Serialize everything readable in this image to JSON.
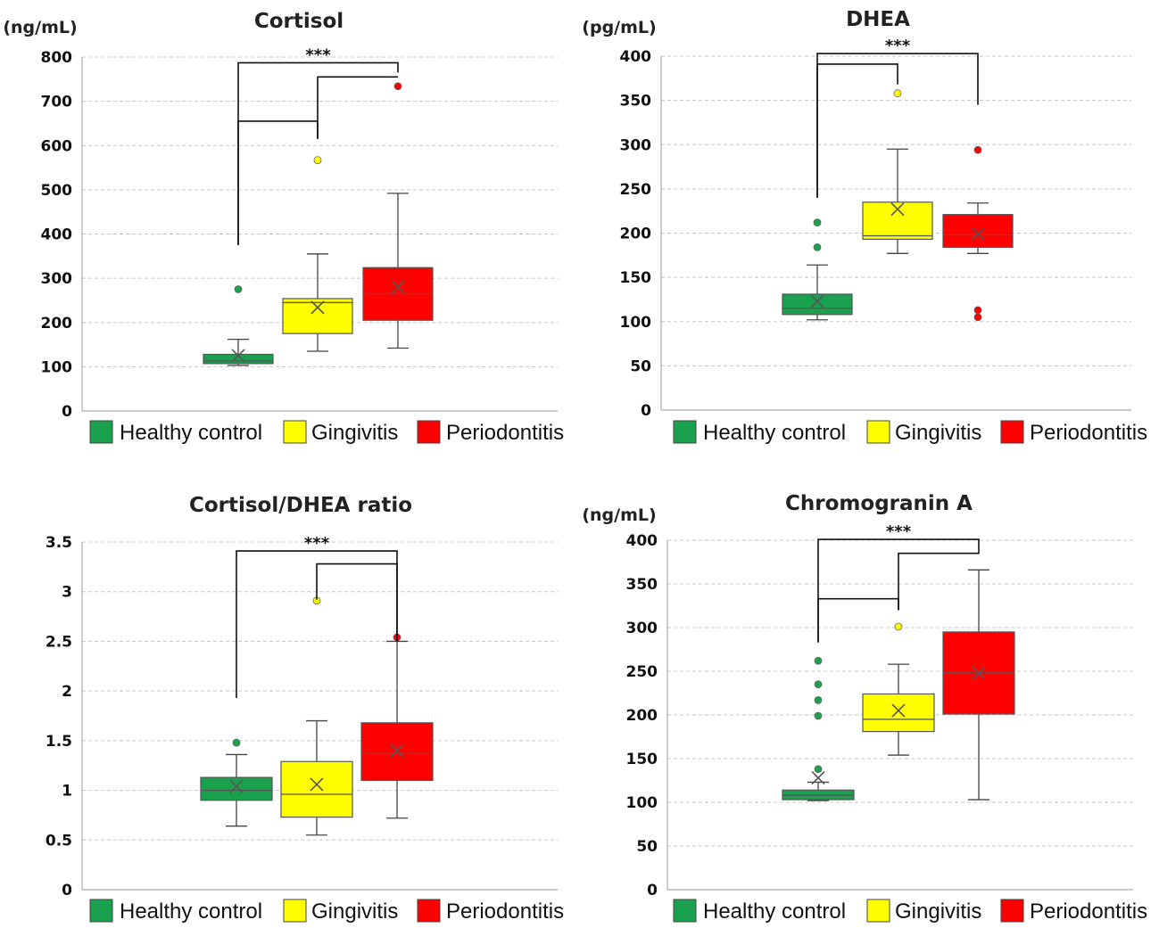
{
  "colors": {
    "healthy": "#1aa14d",
    "gingivitis": "#ffff00",
    "periodontitis": "#ff0000",
    "outline": "#555555"
  },
  "chart_data": [
    {
      "type": "box",
      "title": "Cortisol",
      "ylabel": "(ng/mL)",
      "ylim": [
        0,
        800
      ],
      "yticks": [
        "0",
        "100",
        "200",
        "300",
        "400",
        "500",
        "600",
        "700",
        "800"
      ],
      "yticks_values": [
        0,
        100,
        200,
        300,
        400,
        500,
        600,
        700,
        800
      ],
      "legend": [
        "Healthy control",
        "Gingivitis",
        "Periodontitis"
      ],
      "significance": "***",
      "series": [
        {
          "name": "Healthy control",
          "min": 103,
          "q1": 107,
          "median": 113,
          "q3": 128,
          "max": 162,
          "mean": 125,
          "outliers": [
            275
          ]
        },
        {
          "name": "Gingivitis",
          "min": 135,
          "q1": 175,
          "median": 245,
          "q3": 254,
          "max": 355,
          "mean": 234,
          "outliers": [
            567
          ]
        },
        {
          "name": "Periodontitis",
          "min": 142,
          "q1": 205,
          "median": 265,
          "q3": 324,
          "max": 492,
          "mean": 280,
          "outliers": [
            734
          ]
        }
      ],
      "brackets": [
        {
          "from": 0,
          "to": 2,
          "left_value": 375,
          "right_value": 765,
          "top_value": 787
        },
        {
          "from": 0,
          "to": 1,
          "left_value": 375,
          "right_value": 615,
          "top_value": 655
        },
        {
          "from": 1,
          "to": 2,
          "left_value": 615,
          "right_value": 755,
          "top_value": 755
        }
      ]
    },
    {
      "type": "box",
      "title": "DHEA",
      "ylabel": "(pg/mL)",
      "ylim": [
        0,
        400
      ],
      "yticks": [
        "0",
        "50",
        "100",
        "150",
        "200",
        "250",
        "300",
        "350",
        "400"
      ],
      "yticks_values": [
        0,
        50,
        100,
        150,
        200,
        250,
        300,
        350,
        400
      ],
      "legend": [
        "Healthy control",
        "Gingivitis",
        "Periodontitis"
      ],
      "significance": "***",
      "series": [
        {
          "name": "Healthy control",
          "min": 102,
          "q1": 108,
          "median": 115,
          "q3": 131,
          "max": 164,
          "mean": 123,
          "outliers": [
            184,
            212
          ]
        },
        {
          "name": "Gingivitis",
          "min": 177,
          "q1": 193,
          "median": 197,
          "q3": 235,
          "max": 295,
          "mean": 227,
          "outliers": [
            358
          ]
        },
        {
          "name": "Periodontitis",
          "min": 177,
          "q1": 184,
          "median": 198,
          "q3": 221,
          "max": 234,
          "mean": 199,
          "outliers": [
            105,
            113,
            294
          ]
        }
      ],
      "brackets": [
        {
          "from": 0,
          "to": 2,
          "left_value": 240,
          "right_value": 345,
          "top_value": 403
        },
        {
          "from": 0,
          "to": 1,
          "left_value": 240,
          "right_value": 368,
          "top_value": 391
        }
      ]
    },
    {
      "type": "box",
      "title": "Cortisol/DHEA ratio",
      "ylabel": "",
      "ylim": [
        0,
        3.5
      ],
      "yticks": [
        "0",
        "0.5",
        "1",
        "1.5",
        "2",
        "2.5",
        "3",
        "3.5"
      ],
      "yticks_values": [
        0,
        0.5,
        1,
        1.5,
        2,
        2.5,
        3,
        3.5
      ],
      "legend": [
        "Healthy control",
        "Gingivitis",
        "Periodontitis"
      ],
      "significance": "***",
      "series": [
        {
          "name": "Healthy control",
          "min": 0.64,
          "q1": 0.9,
          "median": 1.0,
          "q3": 1.13,
          "max": 1.36,
          "mean": 1.04,
          "outliers": [
            1.48
          ]
        },
        {
          "name": "Gingivitis",
          "min": 0.55,
          "q1": 0.73,
          "median": 0.96,
          "q3": 1.29,
          "max": 1.7,
          "mean": 1.06,
          "outliers": [
            2.91
          ]
        },
        {
          "name": "Periodontitis",
          "min": 0.72,
          "q1": 1.1,
          "median": 1.37,
          "q3": 1.68,
          "max": 2.5,
          "mean": 1.4,
          "outliers": [
            2.54
          ]
        }
      ],
      "brackets": [
        {
          "from": 0,
          "to": 2,
          "left_value": 1.93,
          "right_value": 2.5,
          "top_value": 3.41
        },
        {
          "from": 1,
          "to": 2,
          "left_value": 2.92,
          "right_value": 2.5,
          "top_value": 3.28
        }
      ]
    },
    {
      "type": "box",
      "title": "Chromogranin A",
      "ylabel": "(ng/mL)",
      "ylim": [
        0,
        400
      ],
      "yticks": [
        "0",
        "50",
        "100",
        "150",
        "200",
        "250",
        "300",
        "350",
        "400"
      ],
      "yticks_values": [
        0,
        50,
        100,
        150,
        200,
        250,
        300,
        350,
        400
      ],
      "legend": [
        "Healthy control",
        "Gingivitis",
        "Periodontitis"
      ],
      "significance": "***",
      "series": [
        {
          "name": "Healthy control",
          "min": 102,
          "q1": 103,
          "median": 108,
          "q3": 114,
          "max": 123,
          "mean": 128,
          "outliers": [
            138,
            199,
            217,
            235,
            262
          ]
        },
        {
          "name": "Gingivitis",
          "min": 154,
          "q1": 181,
          "median": 195,
          "q3": 224,
          "max": 258,
          "mean": 205,
          "outliers": [
            301
          ]
        },
        {
          "name": "Periodontitis",
          "min": 103,
          "q1": 201,
          "median": 248,
          "q3": 295,
          "max": 366,
          "mean": 248,
          "outliers": []
        }
      ],
      "brackets": [
        {
          "from": 0,
          "to": 2,
          "left_value": 283,
          "right_value": 388,
          "top_value": 401
        },
        {
          "from": 0,
          "to": 1,
          "left_value": 283,
          "right_value": 320,
          "top_value": 333
        },
        {
          "from": 1,
          "to": 2,
          "left_value": 320,
          "right_value": 388,
          "top_value": 385
        }
      ]
    }
  ]
}
